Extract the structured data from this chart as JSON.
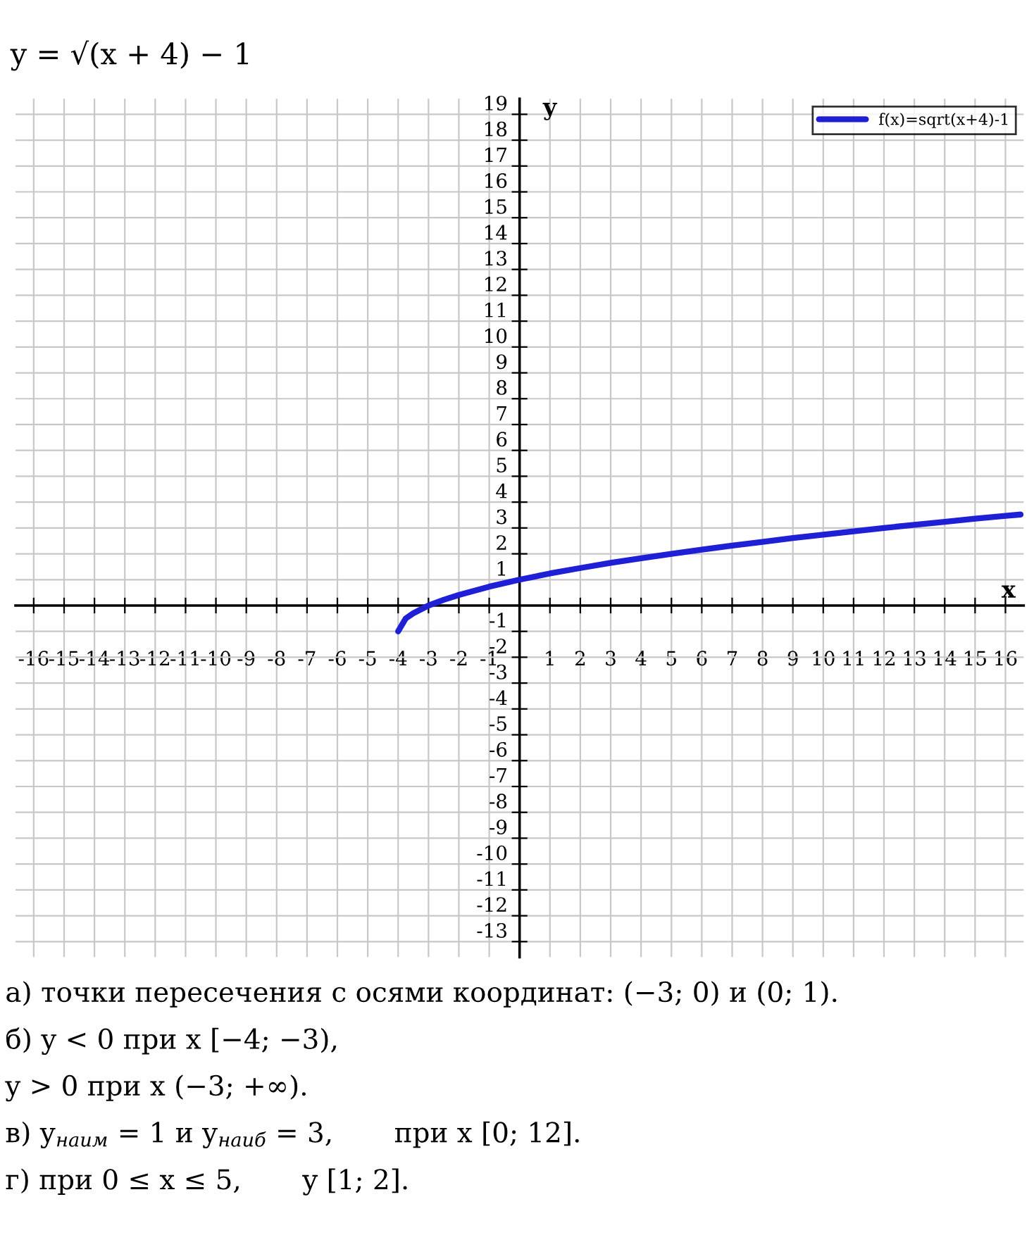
{
  "chart_data": {
    "type": "line",
    "title": "y = √(x + 4) − 1",
    "xlabel": "x",
    "ylabel": "y",
    "x": [
      -4,
      -3.75,
      -3.5,
      -3,
      -2.5,
      -2,
      -1,
      0,
      1,
      2,
      3,
      4,
      5,
      6,
      7,
      8,
      9,
      10,
      11,
      12,
      13,
      14,
      15,
      16,
      16.5
    ],
    "series": [
      {
        "name": "f(x)=sqrt(x+4)-1",
        "color": "#1f1fd6",
        "values": [
          -1,
          -0.5,
          -0.3,
          0,
          0.22,
          0.41,
          0.73,
          1,
          1.24,
          1.45,
          1.65,
          1.83,
          2,
          2.16,
          2.32,
          2.46,
          2.61,
          2.74,
          2.87,
          3,
          3.12,
          3.24,
          3.36,
          3.47,
          3.52
        ]
      }
    ],
    "xlim": [
      -16.6,
      16.6
    ],
    "ylim": [
      -13.6,
      19.6
    ],
    "xticks": [
      -16,
      -15,
      -14,
      -13,
      -12,
      -11,
      -10,
      -9,
      -8,
      -7,
      -6,
      -5,
      -4,
      -3,
      -2,
      -1,
      1,
      2,
      3,
      4,
      5,
      6,
      7,
      8,
      9,
      10,
      11,
      12,
      13,
      14,
      15,
      16
    ],
    "yticks": [
      -13,
      -12,
      -11,
      -10,
      -9,
      -8,
      -7,
      -6,
      -5,
      -4,
      -3,
      -2,
      -1,
      1,
      2,
      3,
      4,
      5,
      6,
      7,
      8,
      9,
      10,
      11,
      12,
      13,
      14,
      15,
      16,
      17,
      18,
      19
    ],
    "grid": true,
    "legend": "top right",
    "marker": "none",
    "line_style": "solid",
    "annotations": [
      "а) точки пересечения с осями координат: (−3; 0) и (0; 1).",
      "б) y < 0 при x [−4; −3),",
      "y > 0 при x (−3; +∞).",
      "в) y$_{наим}$ = 1 и y$_{наиб}$ = 3,       при x [0; 12].",
      "г) при 0 ≤ x ≤ 5,       y [1; 2]."
    ]
  }
}
